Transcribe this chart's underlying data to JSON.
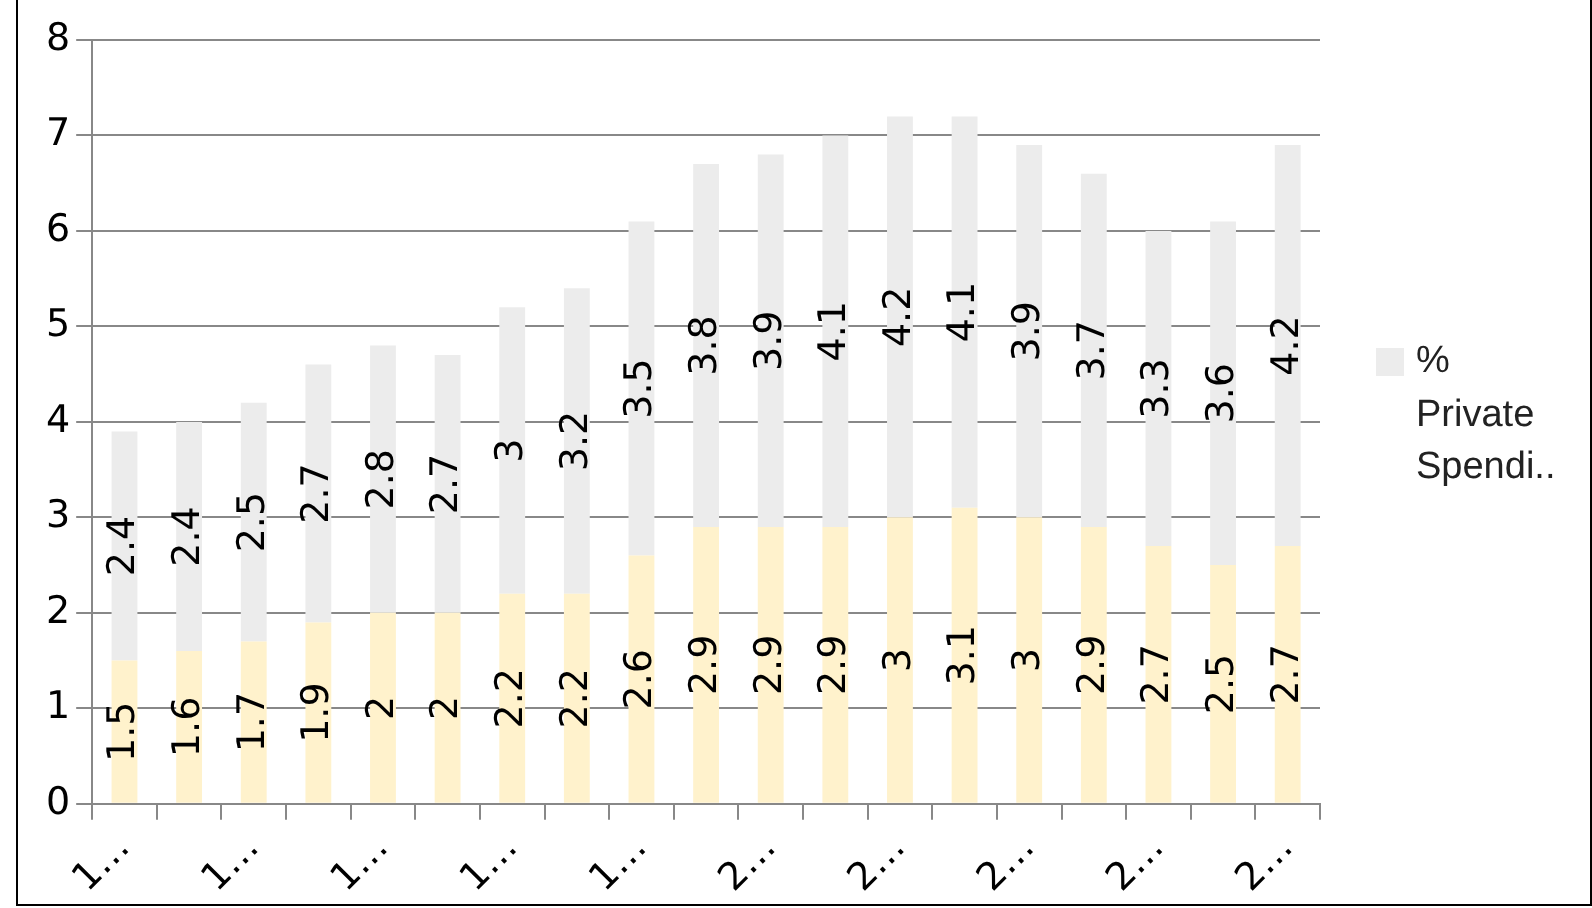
{
  "chart_data": {
    "type": "bar",
    "stacked": true,
    "categories": [
      "1…",
      null,
      "1…",
      null,
      "1…",
      null,
      "1…",
      null,
      "1…",
      null,
      "2…",
      null,
      "2…",
      null,
      "2…",
      null,
      "2…",
      null,
      "2…"
    ],
    "series": [
      {
        "color": "#fff2cc",
        "values": [
          1.5,
          1.6,
          1.7,
          1.9,
          2,
          2,
          2.2,
          2.2,
          2.6,
          2.9,
          2.9,
          2.9,
          3,
          3.1,
          3,
          2.9,
          2.7,
          2.5,
          2.7
        ]
      },
      {
        "name": "% Private Spendi..",
        "color": "#ececec",
        "values": [
          2.4,
          2.4,
          2.5,
          2.7,
          2.8,
          2.7,
          3,
          3.2,
          3.5,
          3.8,
          3.9,
          4.1,
          4.2,
          4.1,
          3.9,
          3.7,
          3.3,
          3.6,
          4.2
        ]
      }
    ],
    "ylim": [
      0,
      8
    ],
    "yticks": [
      0,
      1,
      2,
      3,
      4,
      5,
      6,
      7,
      8
    ],
    "grid": "y",
    "legend": "right",
    "data_labels": true
  }
}
